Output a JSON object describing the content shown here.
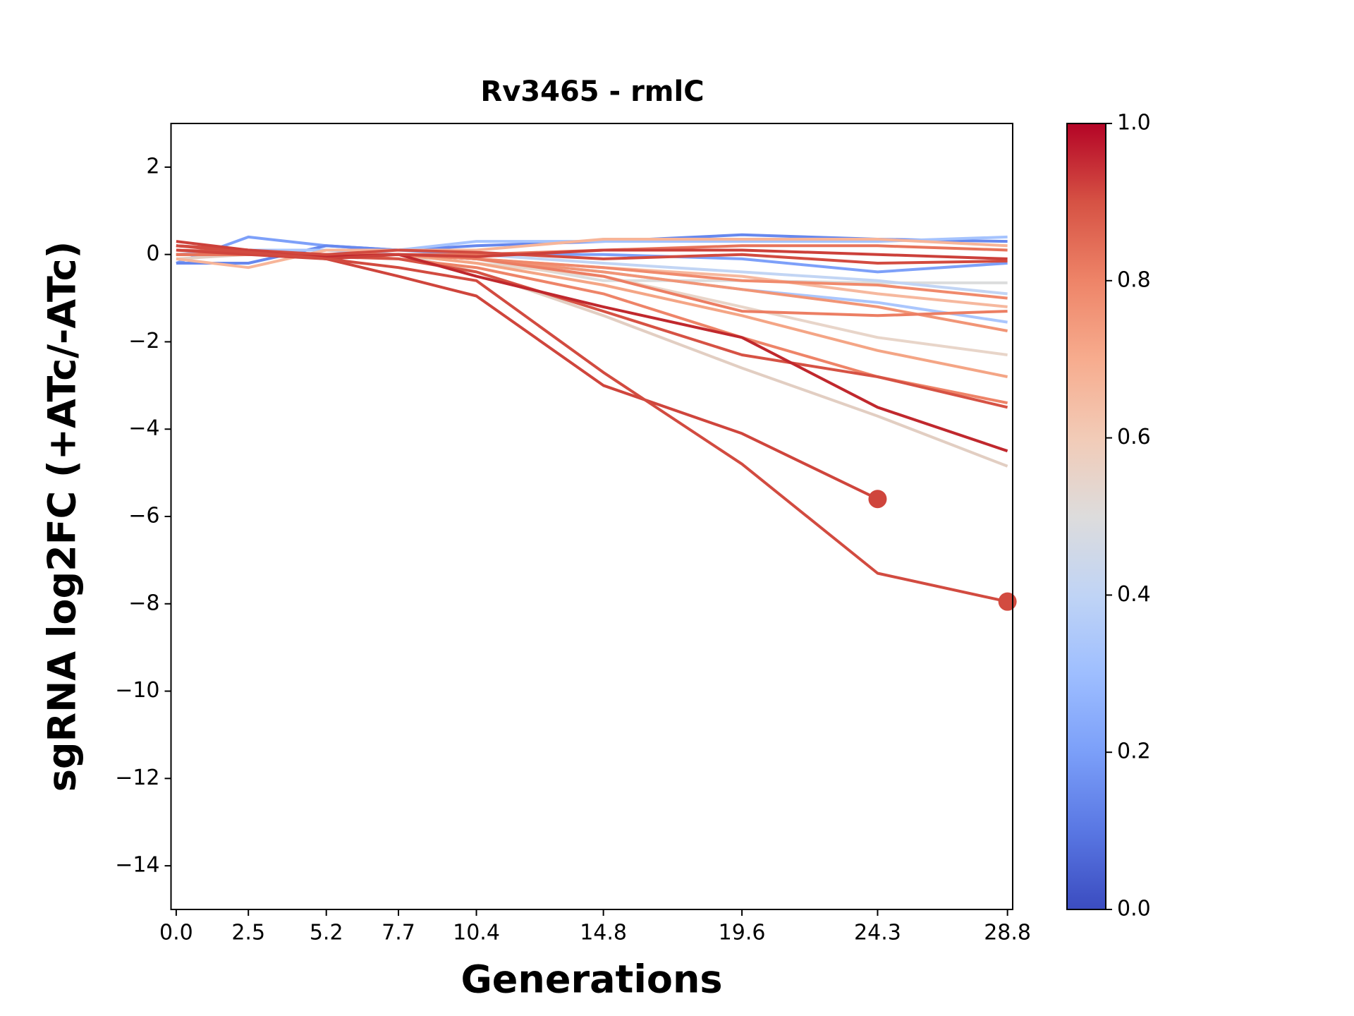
{
  "chart_data": {
    "type": "line",
    "title": "Rv3465 - rmlC",
    "xlabel": "Generations",
    "ylabel": "sgRNA log2FC (+ATc/-ATc)",
    "x": [
      0,
      2.5,
      5.2,
      7.7,
      10.4,
      14.8,
      19.6,
      24.3,
      28.8
    ],
    "xlim": [
      -0.18,
      28.98
    ],
    "xticks": [
      {
        "value": 0,
        "label": "0.0"
      },
      2.5,
      5.2,
      7.7,
      10.4,
      14.8,
      19.6,
      24.3,
      28.8
    ],
    "ylim": [
      -15,
      3
    ],
    "yticks": [
      {
        "value": -14,
        "label": "−14"
      },
      {
        "value": -12,
        "label": "−12"
      },
      {
        "value": -10,
        "label": "−10"
      },
      {
        "value": -8,
        "label": "−8"
      },
      {
        "value": -6,
        "label": "−6"
      },
      {
        "value": -4,
        "label": "−4"
      },
      {
        "value": -2,
        "label": "−2"
      },
      0,
      2
    ],
    "grid": false,
    "series": [
      {
        "color": "#dcdddd",
        "values": [
          0,
          0,
          0,
          0,
          -0.1,
          -0.6,
          -0.6,
          -0.65,
          -0.65
        ]
      },
      {
        "color": "#c2d5f4",
        "values": [
          0,
          0,
          0,
          0,
          0,
          -0.2,
          -0.4,
          -0.6,
          -0.9
        ]
      },
      {
        "color": "#7da0f9",
        "values": [
          -0.2,
          0.4,
          0.2,
          0.1,
          0,
          0,
          -0.1,
          -0.4,
          -0.2
        ]
      },
      {
        "color": "#6788ee",
        "values": [
          -0.2,
          -0.2,
          0.2,
          0.1,
          0.2,
          0.3,
          0.45,
          0.35,
          0.3
        ]
      },
      {
        "color": "#a5c3fe",
        "values": [
          0,
          0.1,
          0.1,
          0.1,
          0.3,
          0.3,
          0.3,
          0.3,
          0.4
        ]
      },
      {
        "color": "#aac6fd",
        "values": [
          0,
          0.1,
          0.1,
          0,
          -0.1,
          -0.4,
          -0.8,
          -1.1,
          -1.55
        ]
      },
      {
        "color": "#e2cec2",
        "values": [
          -0.1,
          0,
          0,
          0,
          -0.4,
          -1.4,
          -2.6,
          -3.7,
          -4.85
        ]
      },
      {
        "color": "#e8d5c9",
        "values": [
          0,
          0,
          0,
          0,
          -0.2,
          -0.5,
          -1.2,
          -1.9,
          -2.3
        ]
      },
      {
        "color": "#f7b599",
        "values": [
          -0.1,
          -0.3,
          0.1,
          0.1,
          0.1,
          0.35,
          0.35,
          0.35,
          0.2
        ]
      },
      {
        "color": "#f6b89e",
        "values": [
          0,
          0,
          0,
          0,
          -0.1,
          -0.3,
          -0.5,
          -0.9,
          -1.2
        ]
      },
      {
        "color": "#f4a585",
        "values": [
          0,
          0,
          0,
          0,
          -0.2,
          -0.7,
          -1.4,
          -2.2,
          -2.8
        ]
      },
      {
        "color": "#f19576",
        "values": [
          0,
          0,
          0,
          0,
          -0.1,
          -0.4,
          -0.8,
          -1.2,
          -1.75
        ]
      },
      {
        "color": "#f08a6c",
        "values": [
          0,
          0,
          0,
          0,
          -0.1,
          -0.3,
          -0.6,
          -0.7,
          -1.0
        ]
      },
      {
        "color": "#ec7e63",
        "values": [
          0,
          0,
          0,
          0,
          -0.1,
          -0.5,
          -1.3,
          -1.4,
          -1.3
        ]
      },
      {
        "color": "#ee8468",
        "values": [
          0,
          0,
          0,
          -0.1,
          -0.3,
          -0.9,
          -1.9,
          -2.8,
          -3.4
        ]
      },
      {
        "color": "#e7745b",
        "values": [
          0,
          0,
          0,
          0,
          0,
          0.1,
          0.2,
          0.2,
          0.1
        ]
      },
      {
        "color": "#d65244",
        "values": [
          0.1,
          0.05,
          -0.05,
          -0.1,
          -0.4,
          -1.3,
          -2.3,
          -2.8,
          -3.5
        ]
      },
      {
        "color": "#c0282d",
        "values": [
          0.2,
          0.1,
          -0.05,
          0,
          -0.5,
          -1.2,
          -1.9,
          -3.5,
          -4.5
        ]
      },
      {
        "color": "#d24b40",
        "values": [
          0.2,
          0.1,
          0,
          0.1,
          0.05,
          -0.1,
          0,
          -0.2,
          -0.15
        ]
      },
      {
        "color": "#cc403a",
        "values": [
          0.3,
          0.1,
          -0.1,
          0,
          -0.05,
          0.1,
          0.1,
          0,
          -0.1
        ]
      },
      {
        "color": "#cf453c",
        "marker": true,
        "values": [
          0.1,
          0,
          -0.1,
          -0.5,
          -0.95,
          -3.0,
          -4.1,
          -5.6,
          null
        ]
      },
      {
        "color": "#d24b40",
        "marker": true,
        "values": [
          0.2,
          0.05,
          -0.1,
          -0.3,
          -0.6,
          -2.7,
          -4.8,
          -7.3,
          -7.95
        ]
      }
    ],
    "colorbar": {
      "colormap": "coolwarm",
      "colors": [
        "#3b4cc0",
        "#5977e3",
        "#7b9ff9",
        "#9ebeff",
        "#c0d4f5",
        "#dddcdc",
        "#f2cbb7",
        "#f7ac8e",
        "#ee8468",
        "#d65244",
        "#b40426"
      ],
      "lim": [
        0,
        1
      ],
      "ticks": [
        {
          "value": 0,
          "label": "0.0"
        },
        0.2,
        0.4,
        0.6,
        0.8,
        {
          "value": 1,
          "label": "1.0"
        }
      ]
    }
  }
}
